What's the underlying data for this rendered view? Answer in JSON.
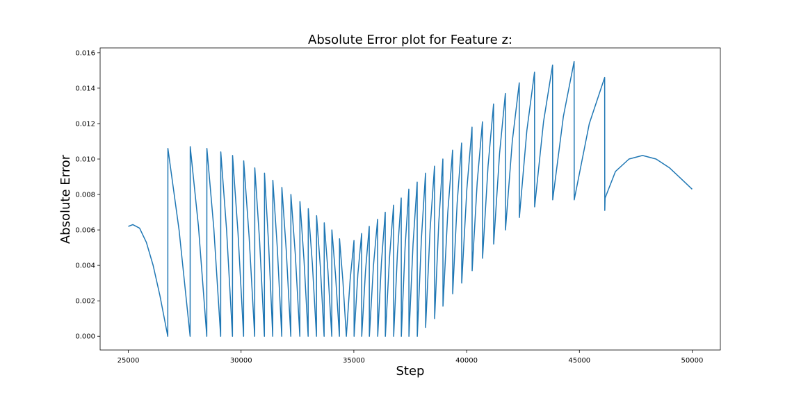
{
  "chart_data": {
    "type": "line",
    "title": "Absolute Error plot for Feature z:",
    "xlabel": "Step",
    "ylabel": "Absolute Error",
    "color": "#1f77b4",
    "xlim": [
      23750,
      51250
    ],
    "ylim": [
      -0.000775,
      0.01627
    ],
    "xticks": [
      25000,
      30000,
      35000,
      40000,
      45000,
      50000
    ],
    "yticks": [
      {
        "value": 0,
        "label": "0.000"
      },
      {
        "value": 0.002,
        "label": "0.002"
      },
      {
        "value": 0.004,
        "label": "0.004"
      },
      {
        "value": 0.006,
        "label": "0.006"
      },
      {
        "value": 0.008,
        "label": "0.008"
      },
      {
        "value": 0.01,
        "label": "0.010"
      },
      {
        "value": 0.012,
        "label": "0.012"
      },
      {
        "value": 0.014,
        "label": "0.014"
      },
      {
        "value": 0.016,
        "label": "0.016"
      }
    ],
    "grid": false,
    "x": [
      25000,
      25200,
      25500,
      25800,
      26100,
      26400,
      26750,
      26755,
      27250,
      27740,
      27745,
      28110,
      28479,
      28484,
      28790,
      29095,
      29100,
      29357,
      29618,
      29623,
      29865,
      30111,
      30116,
      30357,
      30603,
      30608,
      30820,
      31034,
      31039,
      31220,
      31404,
      31409,
      31605,
      31804,
      31809,
      32005,
      32204,
      32209,
      32405,
      32605,
      32610,
      32790,
      32974,
      32979,
      33160,
      33343,
      33348,
      33515,
      33682,
      33687,
      33850,
      34021,
      34026,
      34190,
      34360,
      34365,
      34515,
      34667,
      34836,
      35006,
      35011,
      35178,
      35345,
      35350,
      35517,
      35683,
      35688,
      35870,
      36053,
      36058,
      36225,
      36392,
      36397,
      36579,
      36761,
      36766,
      36933,
      37100,
      37105,
      37271,
      37438,
      37443,
      37625,
      37808,
      37813,
      37995,
      38177,
      38182,
      38380,
      38577,
      38582,
      38765,
      38947,
      38952,
      39165,
      39378,
      39383,
      39580,
      39778,
      39783,
      40010,
      40240,
      40245,
      40470,
      40702,
      40707,
      40950,
      41195,
      41200,
      41460,
      41718,
      41723,
      42025,
      42334,
      42339,
      42670,
      43011,
      43016,
      43410,
      43812,
      43817,
      44290,
      44766,
      44771,
      45440,
      46121,
      46126,
      46140,
      46600,
      47200,
      47800,
      48400,
      49000,
      49500,
      50000
    ],
    "values": [
      0.0062,
      0.0063,
      0.0061,
      0.0053,
      0.004,
      0.0023,
      0,
      0.0106,
      0.006,
      0,
      0.0107,
      0.0062,
      0,
      0.0106,
      0.0061,
      0,
      0.0104,
      0.006,
      0,
      0.0102,
      0.0058,
      0,
      0.0099,
      0.0056,
      0,
      0.0095,
      0.0054,
      0,
      0.0092,
      0.0052,
      0,
      0.0088,
      0.005,
      0,
      0.0084,
      0.0048,
      0,
      0.008,
      0.0046,
      0,
      0.0076,
      0.0043,
      0,
      0.0072,
      0.0041,
      0,
      0.0068,
      0.0039,
      0,
      0.0064,
      0.0037,
      0,
      0.006,
      0.0034,
      0,
      0.0055,
      0.0031,
      0,
      0.0032,
      0.0054,
      0,
      0.0035,
      0.0058,
      0,
      0.0037,
      0.0062,
      0,
      0.004,
      0.0066,
      0,
      0.0042,
      0.007,
      0,
      0.0044,
      0.0074,
      0,
      0.0047,
      0.0078,
      0,
      0.005,
      0.0083,
      0,
      0.0052,
      0.0087,
      0,
      0.0055,
      0.0092,
      0.0005,
      0.006,
      0.0096,
      0.001,
      0.0064,
      0.01,
      0.0017,
      0.007,
      0.0105,
      0.0024,
      0.0075,
      0.0109,
      0.003,
      0.0083,
      0.0118,
      0.0037,
      0.0087,
      0.0121,
      0.0044,
      0.0096,
      0.0131,
      0.0052,
      0.0103,
      0.0137,
      0.006,
      0.011,
      0.0143,
      0.0067,
      0.0116,
      0.0149,
      0.0073,
      0.0121,
      0.0153,
      0.0077,
      0.0124,
      0.0155,
      0.0077,
      0.012,
      0.0146,
      0.0071,
      0.0078,
      0.0093,
      0.01,
      0.0102,
      0.01,
      0.0095,
      0.0089,
      0.0083
    ]
  }
}
